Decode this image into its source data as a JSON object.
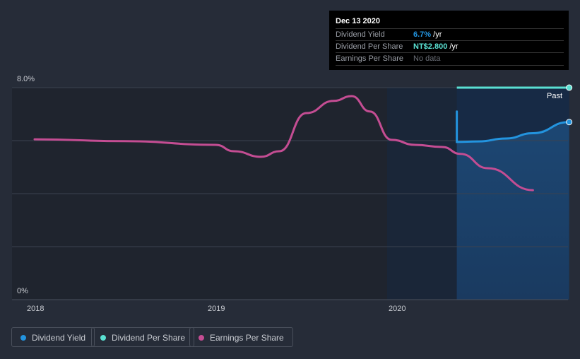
{
  "tooltip": {
    "date": "Dec 13 2020",
    "rows": [
      {
        "label": "Dividend Yield",
        "value": "6.7%",
        "unit": " /yr",
        "color": "#2394df"
      },
      {
        "label": "Dividend Per Share",
        "value": "NT$2.800",
        "unit": " /yr",
        "color": "#5ae0d2"
      },
      {
        "label": "Earnings Per Share",
        "value": "No data",
        "unit": "",
        "color": "#6b6f77"
      }
    ]
  },
  "past_label": "Past",
  "legend": [
    {
      "label": "Dividend Yield",
      "color": "#2394df"
    },
    {
      "label": "Dividend Per Share",
      "color": "#5ae0d2"
    },
    {
      "label": "Earnings Per Share",
      "color": "#c44d93"
    }
  ],
  "chart_data": {
    "type": "line",
    "ylim": [
      0,
      8
    ],
    "y_ticks": [
      "8.0%",
      "0%"
    ],
    "x_ticks": [
      "2018",
      "2019",
      "2020"
    ],
    "xlim": [
      2017.88,
      2020.96
    ],
    "series": [
      {
        "name": "Dividend Yield",
        "unit": "%",
        "color": "#2394df",
        "points": [
          [
            2020.33,
            7.1
          ],
          [
            2020.33,
            5.95
          ],
          [
            2020.45,
            5.97
          ],
          [
            2020.6,
            6.08
          ],
          [
            2020.75,
            6.28
          ],
          [
            2020.95,
            6.7
          ]
        ]
      },
      {
        "name": "Dividend Per Share",
        "unit": "NT$",
        "color": "#5ae0d2",
        "points": [
          [
            2020.33,
            2.8
          ],
          [
            2020.95,
            2.8
          ]
        ]
      },
      {
        "name": "Earnings Per Share",
        "unit": "relative",
        "color": "#c44d93",
        "points": [
          [
            2018,
            6.05
          ],
          [
            2018.5,
            5.98
          ],
          [
            2019,
            5.84
          ],
          [
            2019.1,
            5.6
          ],
          [
            2019.25,
            5.39
          ],
          [
            2019.35,
            5.6
          ],
          [
            2019.5,
            7.04
          ],
          [
            2019.65,
            7.5
          ],
          [
            2019.75,
            7.68
          ],
          [
            2019.85,
            7.1
          ],
          [
            2019.97,
            6.03
          ],
          [
            2020.1,
            5.84
          ],
          [
            2020.25,
            5.76
          ],
          [
            2020.35,
            5.5
          ],
          [
            2020.5,
            4.96
          ],
          [
            2020.75,
            4.13
          ]
        ]
      }
    ]
  }
}
